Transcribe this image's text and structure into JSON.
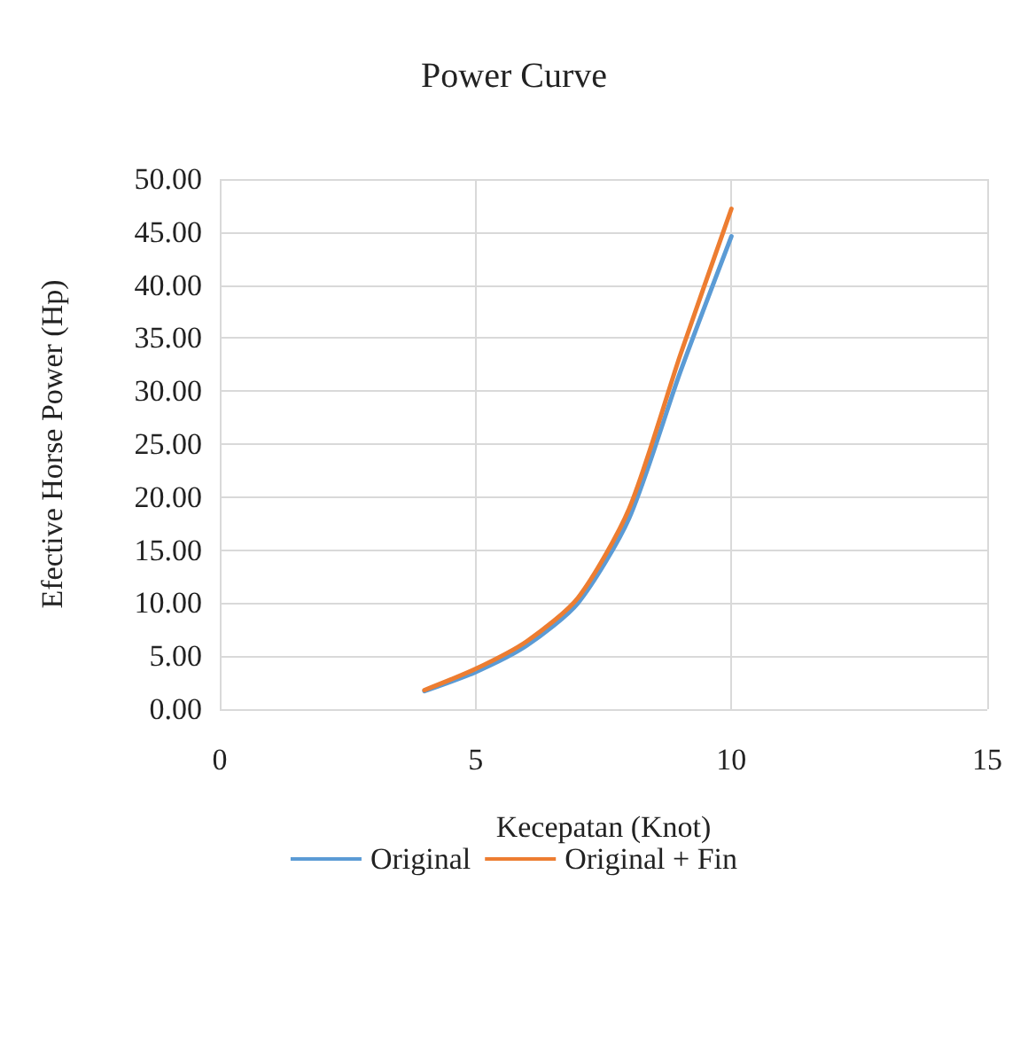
{
  "chart_data": {
    "type": "line",
    "title": "Power Curve",
    "xlabel": "Kecepatan (Knot)",
    "ylabel": "Efective Horse Power (Hp)",
    "x": [
      4,
      5,
      6,
      7,
      8,
      9,
      10
    ],
    "series": [
      {
        "name": "Original",
        "color": "#5b9bd5",
        "values": [
          1.7,
          3.5,
          6.0,
          10.0,
          18.0,
          31.8,
          44.6
        ]
      },
      {
        "name": "Original + Fin",
        "color": "#ed7d31",
        "values": [
          1.8,
          3.8,
          6.4,
          10.5,
          18.9,
          33.4,
          47.2
        ]
      }
    ],
    "xlim": [
      0,
      15
    ],
    "xticks": [
      0,
      5,
      10,
      15
    ],
    "ylim": [
      0,
      50
    ],
    "yticks": [
      {
        "value": 0,
        "label": "0.00"
      },
      {
        "value": 5,
        "label": "5.00"
      },
      {
        "value": 10,
        "label": "10.00"
      },
      {
        "value": 15,
        "label": "15.00"
      },
      {
        "value": 20,
        "label": "20.00"
      },
      {
        "value": 25,
        "label": "25.00"
      },
      {
        "value": 30,
        "label": "30.00"
      },
      {
        "value": 35,
        "label": "35.00"
      },
      {
        "value": 40,
        "label": "40.00"
      },
      {
        "value": 45,
        "label": "45.00"
      },
      {
        "value": 50,
        "label": "50.00"
      }
    ],
    "grid": true,
    "legend": "bottom",
    "marker": "none",
    "line_style": "solid"
  }
}
